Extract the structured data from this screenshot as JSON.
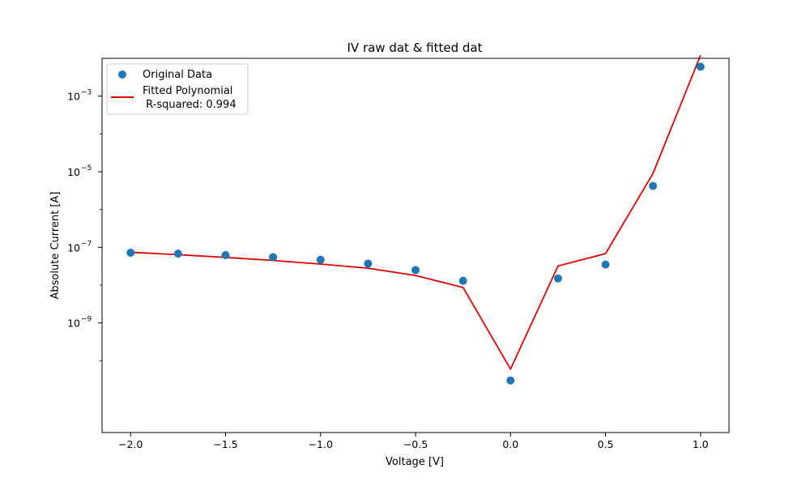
{
  "chart_data": {
    "type": "scatter",
    "title": "IV raw dat & fitted dat",
    "xlabel": "Voltage [V]",
    "ylabel": "Absolute Current [A]",
    "xlim": [
      -2.15,
      1.15
    ],
    "ylim_log10": [
      -11.9,
      -2.0
    ],
    "yscale": "log",
    "grid": false,
    "legend_placement": "upper-left",
    "x_ticks": [
      -2.0,
      -1.5,
      -1.0,
      -0.5,
      0.0,
      0.5,
      1.0
    ],
    "x_tick_labels": [
      "−2.0",
      "−1.5",
      "−1.0",
      "−0.5",
      "0.0",
      "0.5",
      "1.0"
    ],
    "y_ticks": [
      {
        "exp": -3,
        "base": "10",
        "exp_label": "−3"
      },
      {
        "exp": -5,
        "base": "10",
        "exp_label": "−5"
      },
      {
        "exp": -7,
        "base": "10",
        "exp_label": "−7"
      },
      {
        "exp": -9,
        "base": "10",
        "exp_label": "−9"
      }
    ],
    "colors": {
      "data": "#1f77b4",
      "fit": "#e00000"
    },
    "series": [
      {
        "name": "Original Data",
        "kind": "scatter",
        "x": [
          -2.0,
          -1.75,
          -1.5,
          -1.25,
          -1.0,
          -0.75,
          -0.5,
          -0.25,
          0.0,
          0.25,
          0.5,
          0.75,
          1.0
        ],
        "y": [
          7.2e-08,
          6.8e-08,
          6.2e-08,
          5.5e-08,
          4.7e-08,
          3.7e-08,
          2.5e-08,
          1.3e-08,
          3e-11,
          1.5e-08,
          3.5e-08,
          4.2e-06,
          0.006
        ]
      },
      {
        "name": "Fitted Polynomial\n R-squared: 0.994",
        "legend_lines": [
          "Fitted Polynomial",
          " R-squared: 0.994"
        ],
        "kind": "line",
        "x": [
          -2.0,
          -1.75,
          -1.5,
          -1.25,
          -1.0,
          -0.75,
          -0.5,
          -0.25,
          0.0,
          0.25,
          0.5,
          0.75,
          1.0
        ],
        "y": [
          7.4e-08,
          6.4e-08,
          5.4e-08,
          4.5e-08,
          3.6e-08,
          2.8e-08,
          1.8e-08,
          8.7e-09,
          6e-11,
          3.2e-08,
          6.8e-08,
          9e-06,
          0.012
        ]
      }
    ]
  }
}
